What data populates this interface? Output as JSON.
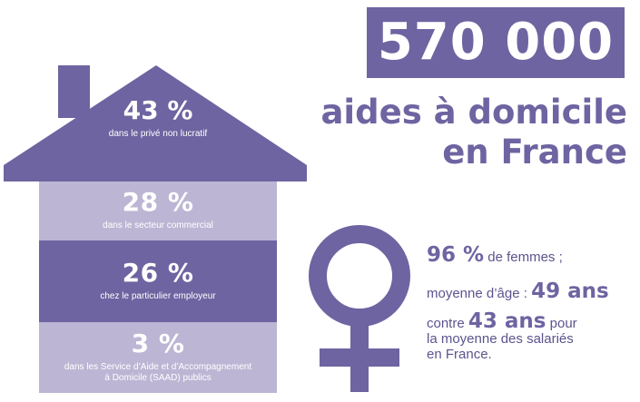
{
  "headline": {
    "number": "570 000",
    "subtitle_line1": "aides à domicile",
    "subtitle_line2": "en France"
  },
  "house": {
    "segments": [
      {
        "percent": "43 %",
        "label_lines": [
          "dans le privé non lucratif"
        ]
      },
      {
        "percent": "28 %",
        "label_lines": [
          "dans le secteur commercial"
        ]
      },
      {
        "percent": "26 %",
        "label_lines": [
          "chez le particulier employeur"
        ]
      },
      {
        "percent": "3 %",
        "label_lines": [
          "dans les Service d’Aide et d’Accompagnement",
          "à Domicile (SAAD) publics"
        ]
      }
    ]
  },
  "stats": {
    "women_value": "96 %",
    "women_text": " de femmes ;",
    "age_text": "moyenne d’âge : ",
    "age_value": "49 ans",
    "compare_text1": "contre ",
    "compare_value": "43 ans",
    "compare_text2": " pour",
    "compare_line2": "la moyenne des salariés",
    "compare_line3": "en France."
  },
  "colors": {
    "primary": "#6e64a1",
    "light": "#bcb6d4",
    "text": "#5b548e"
  },
  "icons": [
    "female-symbol-icon"
  ]
}
